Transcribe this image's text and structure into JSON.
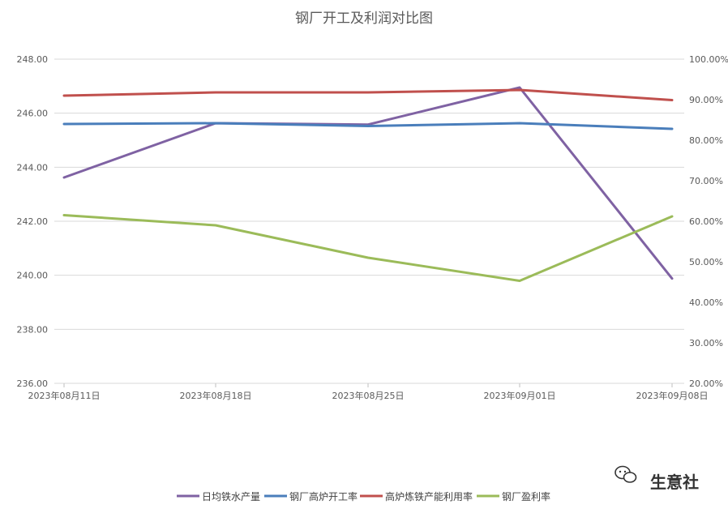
{
  "chart_data": {
    "type": "line",
    "title": "钢厂开工及利润对比图",
    "categories": [
      "2023年08月11日",
      "2023年08月18日",
      "2023年08月25日",
      "2023年09月01日",
      "2023年09月08日"
    ],
    "left_axis": {
      "min": 236,
      "max": 248,
      "step": 2,
      "tick_labels": [
        "236.00",
        "238.00",
        "240.00",
        "242.00",
        "244.00",
        "246.00",
        "248.00"
      ]
    },
    "right_axis": {
      "min": 20,
      "max": 100,
      "step": 10,
      "tick_labels": [
        "20.00%",
        "30.00%",
        "40.00%",
        "50.00%",
        "60.00%",
        "70.00%",
        "80.00%",
        "90.00%",
        "100.00%"
      ]
    },
    "series": [
      {
        "name": "日均铁水产量",
        "axis": "left",
        "color": "#7f62a3",
        "values": [
          243.62,
          245.63,
          245.58,
          246.95,
          239.88
        ]
      },
      {
        "name": "钢厂高炉开工率",
        "axis": "right",
        "color": "#4a7ebb",
        "values": [
          84.0,
          84.2,
          83.5,
          84.2,
          82.8
        ]
      },
      {
        "name": "高炉炼铁产能利用率",
        "axis": "right",
        "color": "#c0504d",
        "values": [
          91.0,
          91.8,
          91.8,
          92.4,
          89.9
        ]
      },
      {
        "name": "钢厂盈利率",
        "axis": "right",
        "color": "#9bbb59",
        "values": [
          61.5,
          59.0,
          51.0,
          45.3,
          61.2
        ]
      }
    ],
    "grid": true,
    "legend_position": "bottom"
  },
  "watermark": {
    "text": "生意社",
    "icon": "wechat-icon"
  }
}
